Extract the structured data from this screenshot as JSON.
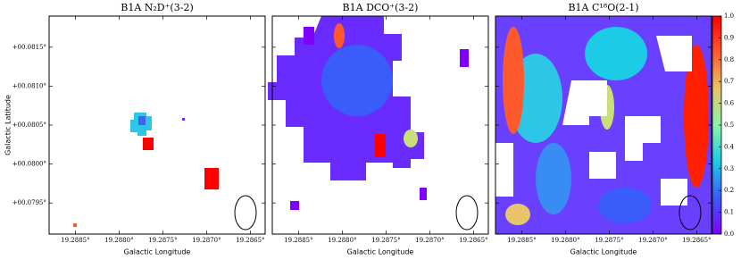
{
  "chart_data": [
    {
      "type": "heatmap",
      "title": "B1A N₂D⁺(3-2)",
      "xlabel": "Galactic Longitude",
      "ylabel": "Galactic Latitude",
      "xlim": [
        19.2888,
        19.28633
      ],
      "ylim": [
        0.0791,
        0.0819
      ],
      "xticks": [
        {
          "value": 19.2885,
          "label": "19.2885°"
        },
        {
          "value": 19.288,
          "label": "19.2880°"
        },
        {
          "value": 19.2875,
          "label": "19.2875°"
        },
        {
          "value": 19.287,
          "label": "19.2870°"
        },
        {
          "value": 19.2865,
          "label": "19.2865°"
        }
      ],
      "yticks": [
        {
          "value": 0.0815,
          "label": "+00.0815°"
        },
        {
          "value": 0.081,
          "label": "+00.0810°"
        },
        {
          "value": 0.0805,
          "label": "+00.0805°"
        },
        {
          "value": 0.08,
          "label": "+00.0800°"
        },
        {
          "value": 0.0795,
          "label": "+00.0795°"
        }
      ]
    },
    {
      "type": "heatmap",
      "title": "B1A DCO⁺(3-2)",
      "xlabel": "Galactic Longitude",
      "xlim": [
        19.2888,
        19.28633
      ],
      "ylim": [
        0.0791,
        0.0819
      ],
      "xticks": [
        {
          "value": 19.2885,
          "label": "19.2885°"
        },
        {
          "value": 19.288,
          "label": "19.2880°"
        },
        {
          "value": 19.2875,
          "label": "19.2875°"
        },
        {
          "value": 19.287,
          "label": "19.2870°"
        },
        {
          "value": 19.2865,
          "label": "19.2865°"
        }
      ]
    },
    {
      "type": "heatmap",
      "title": "B1A C¹⁸O(2-1)",
      "xlabel": "Galactic Longitude",
      "xlim": [
        19.2888,
        19.28633
      ],
      "ylim": [
        0.0791,
        0.0819
      ],
      "xticks": [
        {
          "value": 19.2885,
          "label": "19.2885°"
        },
        {
          "value": 19.288,
          "label": "19.2880°"
        },
        {
          "value": 19.2875,
          "label": "19.2875°"
        },
        {
          "value": 19.287,
          "label": "19.2870°"
        },
        {
          "value": 19.2865,
          "label": "19.2865°"
        }
      ],
      "colorbar": {
        "ylim": [
          0,
          1
        ],
        "colors": [
          "#8000ff",
          "#3a5cfa",
          "#1ccbe6",
          "#8cf5a8",
          "#e8c46a",
          "#ff5a2e",
          "#ff0000"
        ],
        "yticks": [
          {
            "value": 0,
            "label": "0.0"
          },
          {
            "value": 0.1,
            "label": "0.1"
          },
          {
            "value": 0.2,
            "label": "0.2"
          },
          {
            "value": 0.3,
            "label": "0.3"
          },
          {
            "value": 0.4,
            "label": "0.4"
          },
          {
            "value": 0.5,
            "label": "0.5"
          },
          {
            "value": 0.6,
            "label": "0.6"
          },
          {
            "value": 0.7,
            "label": "0.7"
          },
          {
            "value": 0.8,
            "label": "0.8"
          },
          {
            "value": 0.9,
            "label": "0.9"
          },
          {
            "value": 1,
            "label": "1.0"
          }
        ]
      }
    }
  ]
}
